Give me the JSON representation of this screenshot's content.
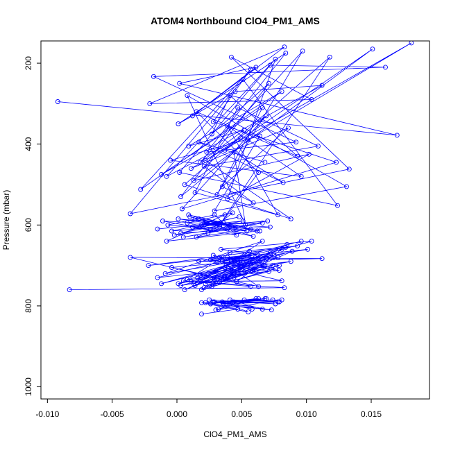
{
  "chart_data": {
    "type": "scatter",
    "title": "ATOM4 Northbound ClO4_PM1_AMS",
    "xlabel": "ClO4_PM1_AMS",
    "ylabel": "Pressure (mbar)",
    "xlim": [
      -0.0105,
      0.0195
    ],
    "ylim": [
      1030,
      145
    ],
    "y_reversed": true,
    "x_ticks": [
      -0.01,
      -0.005,
      0.0,
      0.005,
      0.01,
      0.015
    ],
    "x_tick_labels": [
      "-0.010",
      "-0.005",
      "0.000",
      "0.005",
      "0.010",
      "0.015"
    ],
    "y_ticks": [
      200,
      400,
      600,
      800,
      1000
    ],
    "y_tick_labels": [
      "200",
      "400",
      "600",
      "800",
      "1000"
    ],
    "grid": false,
    "legend": "none",
    "colors": {
      "series": "#0000ff",
      "axis": "#000000"
    },
    "series": [
      {
        "style": "points-connected",
        "x": [
          -0.0092,
          0.017,
          0.0002,
          0.0061,
          0.0012,
          0.0083,
          -0.0021,
          0.0104,
          0.0042,
          0.0133,
          -0.0036,
          0.0051,
          0.0124,
          0.0002,
          0.0072,
          0.0161,
          -0.0018,
          0.0092,
          0.0023,
          0.0084,
          0.0001,
          0.0045,
          0.0112,
          -0.0012,
          0.0066,
          0.0031,
          0.0097,
          0.0018,
          0.0052,
          0.0009,
          0.0081,
          -0.0028,
          0.0057,
          0.0028,
          0.0123,
          0.0004,
          0.0069,
          0.0037,
          0.0151,
          0.0013,
          0.0102,
          0.0039,
          0.0076,
          -0.0008,
          0.0049,
          0.0022,
          0.0088,
          0.0006,
          0.0118,
          0.0033,
          0.0063,
          0.0015,
          0.0093,
          0.0041,
          0.0027,
          0.0071,
          0.0003,
          0.0055,
          0.0181,
          0.0011,
          0.0086,
          0.0035,
          0.0059,
          0.0021,
          0.0109,
          0.0047,
          0.0014,
          0.0078,
          0.0039,
          0.0096,
          -0.0005,
          0.0064,
          0.0029,
          0.0131,
          0.0008,
          0.0053,
          0.0044,
          0.0082,
          0.0017,
          0.0068
        ],
        "y": [
          295,
          378,
          250,
          210,
          330,
          160,
          300,
          290,
          185,
          462,
          572,
          240,
          552,
          470,
          205,
          210,
          233,
          395,
          420,
          175,
          350,
          270,
          255,
          475,
          310,
          525,
          170,
          445,
          365,
          405,
          270,
          512,
          215,
          345,
          445,
          560,
          330,
          415,
          165,
          490,
          425,
          535,
          190,
          480,
          385,
          440,
          585,
          500,
          185,
          600,
          470,
          320,
          430,
          280,
          375,
          250,
          530,
          390,
          150,
          460,
          360,
          505,
          545,
          455,
          405,
          310,
          520,
          575,
          355,
          480,
          440,
          380,
          565,
          505,
          280,
          600,
          420,
          495,
          395,
          445
        ]
      },
      {
        "style": "points-connected",
        "x": [
          -0.0083,
          0.0083,
          0.0005,
          0.0057,
          -0.0036,
          0.0112,
          0.0017,
          0.0071,
          -0.0012,
          0.0104,
          0.0034,
          0.0062,
          -0.0022,
          0.0093,
          0.0041,
          0.0008,
          0.0079,
          0.0026,
          0.0101,
          -0.0009,
          0.0066,
          0.0014,
          0.0049,
          0.0088,
          0.0001,
          0.0058,
          0.0031,
          0.0096,
          -0.0015,
          0.0074,
          0.0021,
          0.0044,
          0.0085,
          0.0006,
          0.0069,
          0.0037,
          0.0081,
          0.0011,
          0.0054,
          0.0019,
          0.0076,
          0.0028,
          0.0063,
          -0.0004,
          0.0047,
          0.0024,
          0.0072,
          0.0033,
          0.0089,
          0.0016,
          0.0052,
          0.0039,
          0.0078,
          0.0003,
          0.0061,
          0.0035,
          0.0084,
          0.0013,
          0.0056,
          0.0029,
          0.0067,
          0.0042,
          0.0075,
          0.0022,
          0.0059,
          0.0038,
          0.0081,
          0.0046,
          0.0018,
          0.0064,
          0.0027,
          0.0071,
          0.0049,
          0.0033,
          0.0079,
          0.0036,
          0.0058,
          0.0025,
          0.0068,
          0.0044
        ],
        "y": [
          760,
          755,
          738,
          752,
          680,
          683,
          690,
          678,
          745,
          640,
          660,
          672,
          700,
          652,
          668,
          735,
          712,
          686,
          660,
          720,
          640,
          750,
          705,
          690,
          745,
          675,
          692,
          640,
          730,
          700,
          755,
          718,
          648,
          760,
          685,
          705,
          738,
          740,
          692,
          760,
          708,
          675,
          752,
          705,
          690,
          720,
          668,
          742,
          665,
          730,
          705,
          680,
          680,
          750,
          715,
          690,
          655,
          745,
          665,
          735,
          700,
          690,
          675,
          745,
          710,
          700,
          660,
          740,
          725,
          690,
          752,
          715,
          700,
          680,
          700,
          735,
          690,
          752,
          700,
          730
        ]
      },
      {
        "style": "points-connected",
        "x": [
          0.0019,
          0.0047,
          0.0022,
          0.0081,
          0.003,
          0.0061,
          0.0026,
          0.0073,
          0.0035,
          0.0055,
          0.0019,
          0.0078,
          0.0041,
          0.0066,
          0.0028,
          0.0069,
          0.0038,
          0.0058,
          0.0025,
          0.0076,
          0.0044,
          0.0063,
          0.0032,
          0.0052,
          0.0079,
          0.0036,
          0.0068,
          0.0029,
          0.0074,
          0.0043
        ],
        "y": [
          820,
          808,
          792,
          785,
          810,
          782,
          795,
          810,
          790,
          815,
          792,
          790,
          785,
          808,
          790,
          782,
          795,
          808,
          785,
          795,
          790,
          782,
          808,
          785,
          790,
          795,
          782,
          790,
          785,
          792
        ]
      },
      {
        "style": "points-connected",
        "x": [
          -0.0015,
          0.003,
          -0.0002,
          0.0045,
          0.001,
          0.0062,
          -0.0008,
          0.0037,
          0.0019,
          0.0051,
          0.0003,
          0.0072,
          -0.0011,
          0.0026,
          0.0043,
          0.0008,
          0.0059,
          0.0014,
          0.0033,
          -0.0004,
          0.0048,
          0.0021,
          0.0066,
          0.0005,
          0.0039,
          0.0017,
          0.0054,
          -0.0007,
          0.0029,
          0.0046,
          0.0012,
          0.007,
          0.0024,
          0.0036,
          0.0001,
          0.0057,
          0.0015,
          0.0041,
          0.0009,
          0.0064
        ],
        "y": [
          610,
          595,
          625,
          605,
          580,
          615,
          640,
          575,
          600,
          590,
          620,
          605,
          590,
          612,
          570,
          595,
          628,
          585,
          605,
          615,
          580,
          600,
          595,
          630,
          610,
          585,
          615,
          600,
          575,
          625,
          605,
          590,
          620,
          595,
          585,
          610,
          630,
          600,
          575,
          615
        ]
      }
    ]
  }
}
